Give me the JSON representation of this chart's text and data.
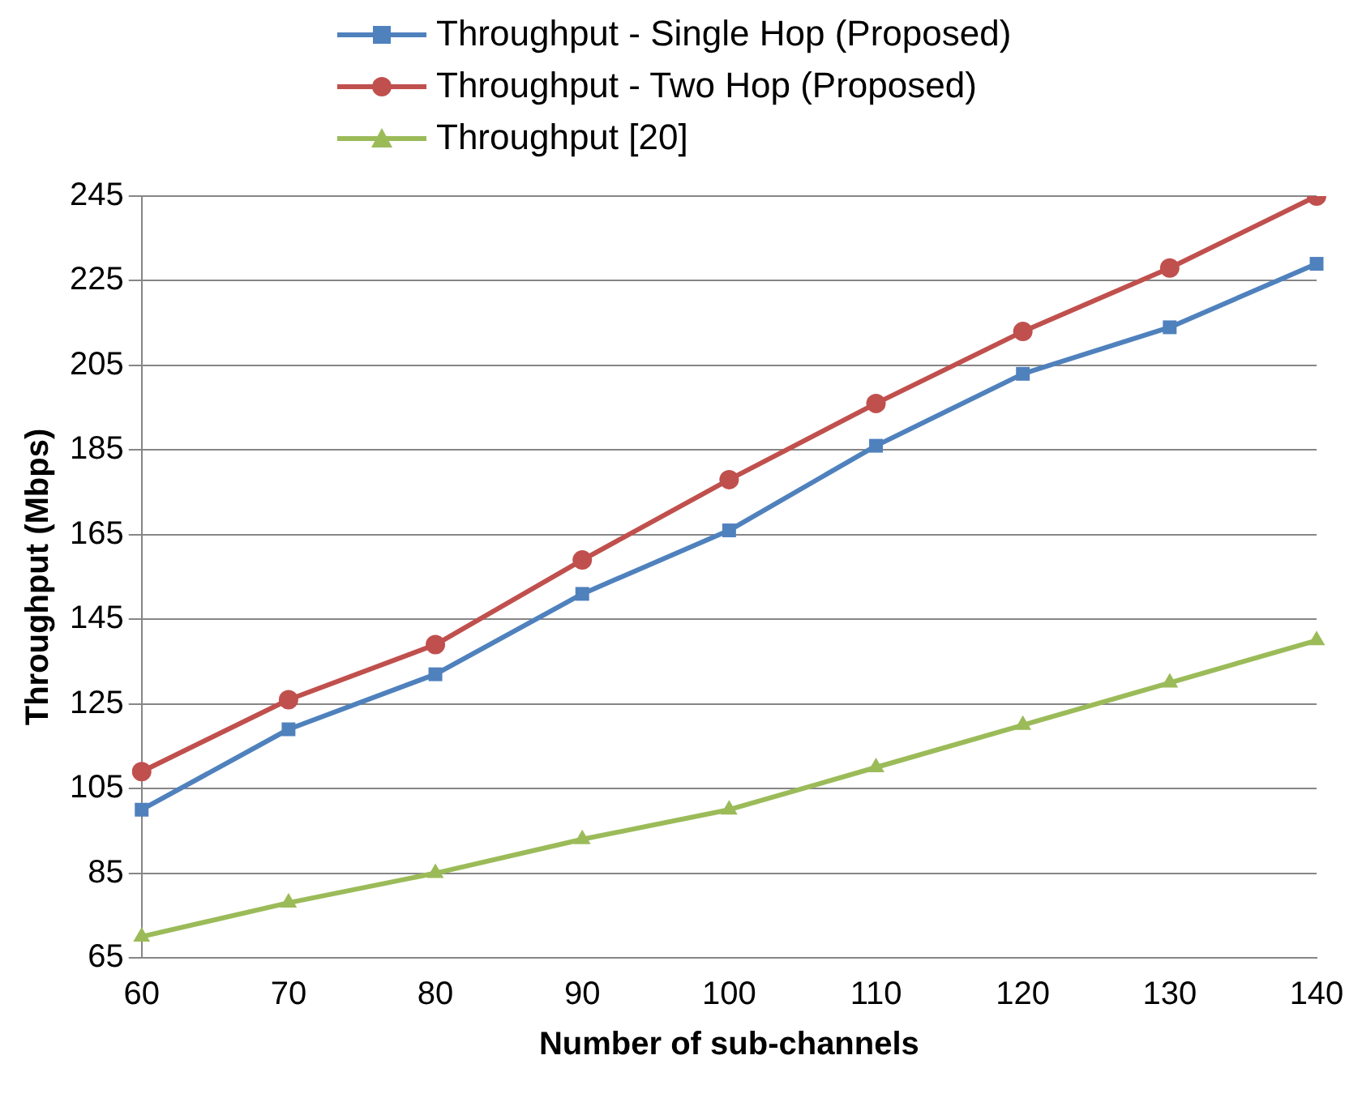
{
  "chart_data": {
    "type": "line",
    "xlabel": "Number of sub-channels",
    "ylabel": "Throughput (Mbps)",
    "categories": [
      "60",
      "70",
      "80",
      "90",
      "100",
      "110",
      "120",
      "130",
      "140"
    ],
    "series": [
      {
        "name": "Throughput - Single Hop (Proposed)",
        "color": "#4f81bd",
        "marker": "square",
        "values": [
          100,
          119,
          132,
          151,
          166,
          186,
          203,
          214,
          229
        ]
      },
      {
        "name": "Throughput - Two Hop (Proposed)",
        "color": "#c0504d",
        "marker": "circle",
        "values": [
          109,
          126,
          139,
          159,
          178,
          196,
          213,
          228,
          245
        ]
      },
      {
        "name": "Throughput [20]",
        "color": "#9bbb59",
        "marker": "triangle",
        "values": [
          70,
          78,
          85,
          93,
          100,
          110,
          120,
          130,
          140
        ]
      }
    ],
    "ylim": [
      65,
      245
    ],
    "yticks": [
      65,
      85,
      105,
      125,
      145,
      165,
      185,
      205,
      225,
      245
    ],
    "grid": "y",
    "legend": "top",
    "line_style": "solid"
  }
}
